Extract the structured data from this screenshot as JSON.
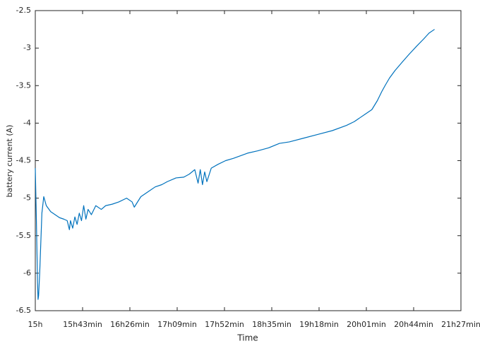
{
  "chart_data": {
    "type": "line",
    "xlabel": "Time",
    "ylabel": "battery current (A)",
    "x": [
      0,
      1,
      2,
      2.5,
      3,
      4,
      5,
      6,
      7.7,
      10,
      14,
      18,
      22,
      26,
      29,
      31,
      32,
      34,
      36,
      38,
      40,
      42,
      44,
      46,
      48,
      51,
      55,
      60,
      64,
      70,
      76,
      83,
      88,
      90,
      96,
      102,
      109,
      115,
      120,
      128,
      135,
      140,
      145,
      148,
      150,
      152,
      154,
      156,
      160,
      166,
      173,
      180,
      193,
      202,
      212,
      222,
      231,
      244,
      257,
      270,
      283,
      290,
      295,
      300,
      302,
      306,
      311,
      315,
      318,
      322,
      327,
      334,
      340,
      347,
      353,
      358,
      363
    ],
    "series": [
      {
        "color": "#0072bd",
        "values": [
          -4.6,
          -5.3,
          -6.1,
          -6.35,
          -6.3,
          -6.0,
          -5.6,
          -5.2,
          -4.98,
          -5.1,
          -5.18,
          -5.22,
          -5.26,
          -5.28,
          -5.3,
          -5.42,
          -5.3,
          -5.4,
          -5.25,
          -5.35,
          -5.2,
          -5.3,
          -5.1,
          -5.28,
          -5.15,
          -5.22,
          -5.1,
          -5.15,
          -5.1,
          -5.08,
          -5.05,
          -5.0,
          -5.05,
          -5.12,
          -4.98,
          -4.92,
          -4.85,
          -4.82,
          -4.78,
          -4.73,
          -4.72,
          -4.68,
          -4.62,
          -4.8,
          -4.62,
          -4.82,
          -4.65,
          -4.78,
          -4.6,
          -4.55,
          -4.5,
          -4.47,
          -4.4,
          -4.37,
          -4.33,
          -4.27,
          -4.25,
          -4.2,
          -4.15,
          -4.1,
          -4.03,
          -3.98,
          -3.93,
          -3.88,
          -3.86,
          -3.82,
          -3.7,
          -3.58,
          -3.5,
          -3.4,
          -3.3,
          -3.18,
          -3.08,
          -2.97,
          -2.88,
          -2.8,
          -2.75
        ]
      }
    ],
    "xlim": [
      0,
      387
    ],
    "xticks": [
      {
        "value": 0,
        "label": "15h"
      },
      {
        "value": 43,
        "label": "15h43min"
      },
      {
        "value": 86,
        "label": "16h26min"
      },
      {
        "value": 129,
        "label": "17h09min"
      },
      {
        "value": 172,
        "label": "17h52min"
      },
      {
        "value": 215,
        "label": "18h35min"
      },
      {
        "value": 258,
        "label": "19h18min"
      },
      {
        "value": 301,
        "label": "20h01min"
      },
      {
        "value": 344,
        "label": "20h44min"
      },
      {
        "value": 387,
        "label": "21h27min"
      }
    ],
    "ylim": [
      -6.5,
      -2.5
    ],
    "yticks": [
      -6.5,
      -6,
      -5.5,
      -5,
      -4.5,
      -4,
      -3.5,
      -3,
      -2.5
    ],
    "grid": false
  }
}
